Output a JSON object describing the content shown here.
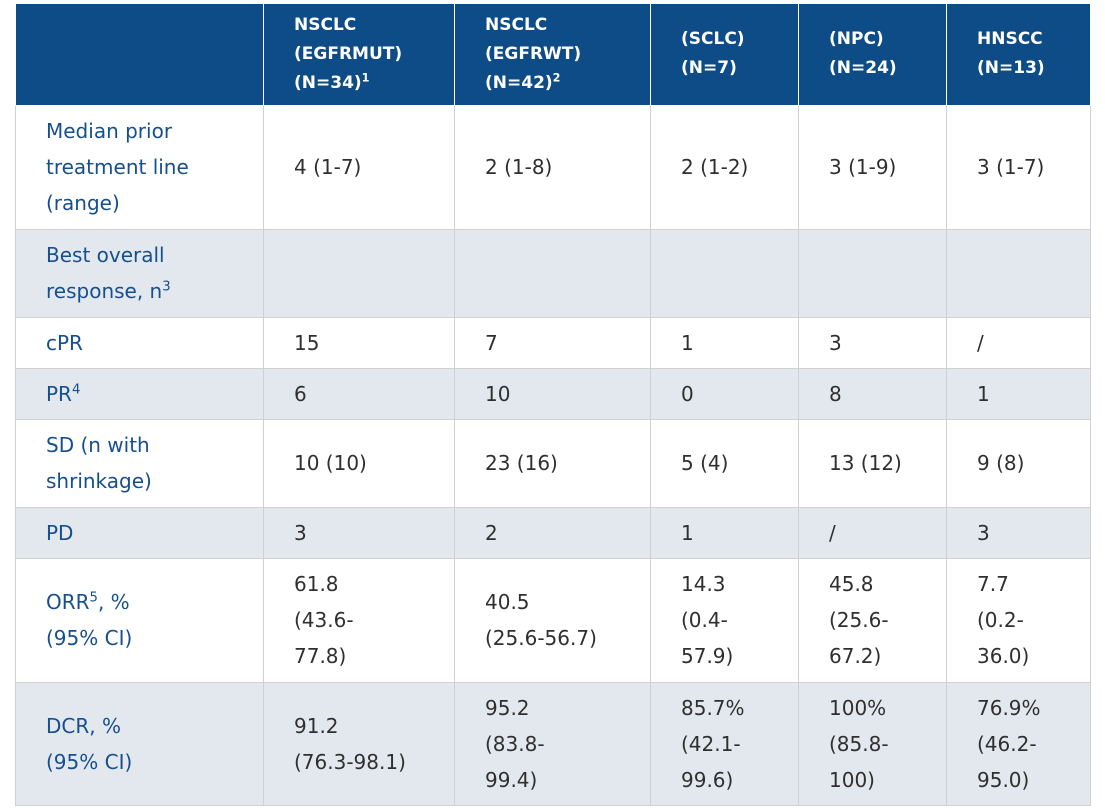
{
  "header": {
    "col0": "",
    "col1": {
      "line1": "NSCLC",
      "line2": "(EGFRMUT)",
      "line3": "(N=34)",
      "sup": "1"
    },
    "col2": {
      "line1": "NSCLC",
      "line2": "(EGFRWT)",
      "line3": "(N=42)",
      "sup": "2"
    },
    "col3": {
      "line1": "(SCLC)",
      "line2": "(N=7)"
    },
    "col4": {
      "line1": "(NPC)",
      "line2": "(N=24)"
    },
    "col5": {
      "line1": "HNSCC",
      "line2": "(N=13)"
    }
  },
  "rows": {
    "median": {
      "label": [
        "Median prior",
        "treatment line",
        "(range)"
      ],
      "values": [
        "4 (1-7)",
        "2 (1-8)",
        "2 (1-2)",
        "3 (1-9)",
        "3 (1-7)"
      ]
    },
    "bor": {
      "label": [
        "Best overall",
        "response, n"
      ],
      "sup": "3"
    },
    "cpr": {
      "label": "cPR",
      "values": [
        "15",
        "7",
        "1",
        "3",
        "/"
      ]
    },
    "pr": {
      "label": "PR",
      "sup": "4",
      "values": [
        "6",
        "10",
        "0",
        "8",
        "1"
      ]
    },
    "sd": {
      "label": [
        "SD (n with",
        "shrinkage)"
      ],
      "values": [
        "10 (10)",
        "23 (16)",
        "5 (4)",
        "13 (12)",
        "9 (8)"
      ]
    },
    "pd": {
      "label": "PD",
      "values": [
        "3",
        "2",
        "1",
        "/",
        "3"
      ]
    },
    "orr": {
      "label": [
        "ORR",
        "5",
        ", %",
        "(95% CI)"
      ],
      "values": [
        [
          "61.8",
          "(43.6-",
          "77.8)"
        ],
        [
          "40.5",
          "(25.6-56.7)"
        ],
        [
          "14.3",
          "(0.4-",
          "57.9)"
        ],
        [
          "45.8",
          "(25.6-",
          "67.2)"
        ],
        [
          "7.7",
          "(0.2-",
          "36.0)"
        ]
      ]
    },
    "dcr": {
      "label": [
        "DCR, %",
        "(95% CI)"
      ],
      "values": [
        [
          "91.2",
          "(76.3-98.1)"
        ],
        [
          "95.2",
          "(83.8-",
          "99.4)"
        ],
        [
          "85.7%",
          "(42.1-",
          "99.6)"
        ],
        [
          "100%",
          "(85.8-",
          "100)"
        ],
        [
          "76.9%",
          "(46.2-",
          "95.0)"
        ]
      ]
    }
  }
}
